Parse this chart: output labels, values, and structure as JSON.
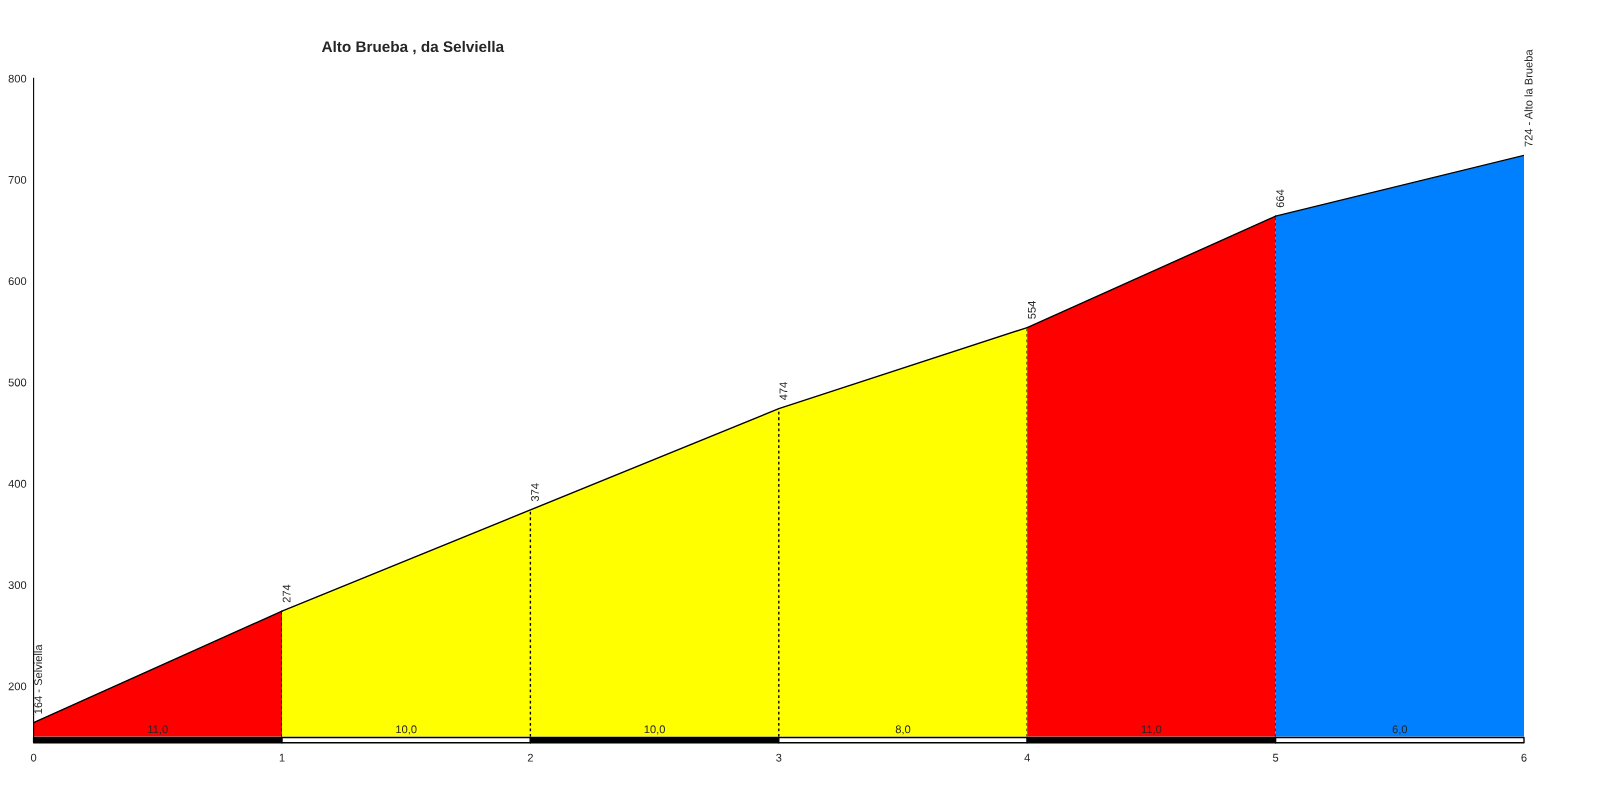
{
  "chart_data": {
    "type": "area",
    "title": "Alto Brueba , da Selviella",
    "xlim": [
      0,
      6
    ],
    "xticks": [
      0,
      1,
      2,
      3,
      4,
      5,
      6
    ],
    "ylim": [
      150,
      800
    ],
    "yticks": [
      200,
      300,
      400,
      500,
      600,
      700,
      800
    ],
    "grid": false,
    "legend": false,
    "series": [
      {
        "x": [
          0,
          1
        ],
        "values": [
          164,
          274
        ],
        "color": "#ff0000"
      },
      {
        "x": [
          1,
          2,
          3,
          4
        ],
        "values": [
          274,
          374,
          474,
          554
        ],
        "color": "#ffff00"
      },
      {
        "x": [
          4,
          5
        ],
        "values": [
          554,
          664
        ],
        "color": "#ff0000"
      },
      {
        "x": [
          5,
          6
        ],
        "values": [
          664,
          724
        ],
        "color": "#0080ff"
      }
    ],
    "annotations": [
      {
        "text": "164 - Selviella",
        "x": 0,
        "y": 164
      },
      {
        "text": "274",
        "x": 1,
        "y": 274
      },
      {
        "text": "374",
        "x": 2,
        "y": 374
      },
      {
        "text": "474",
        "x": 3,
        "y": 474
      },
      {
        "text": "554",
        "x": 4,
        "y": 554
      },
      {
        "text": "664",
        "x": 5,
        "y": 664
      },
      {
        "text": "724 - Alto la Brueba",
        "x": 6,
        "y": 724
      },
      "11,0",
      "10,0",
      "10,0",
      "8,0",
      "11,0",
      "6,0"
    ],
    "ref_lines": [
      {
        "axis": "x",
        "value": 1,
        "color": "#000000",
        "line_style": "dashed"
      },
      {
        "axis": "x",
        "value": 2,
        "color": "#000000",
        "line_style": "dashed"
      },
      {
        "axis": "x",
        "value": 3,
        "color": "#000000",
        "line_style": "dashed"
      },
      {
        "axis": "x",
        "value": 4,
        "color": "#000000",
        "line_style": "dashed"
      },
      {
        "axis": "x",
        "value": 5,
        "color": "#000000",
        "line_style": "dashed"
      }
    ]
  }
}
